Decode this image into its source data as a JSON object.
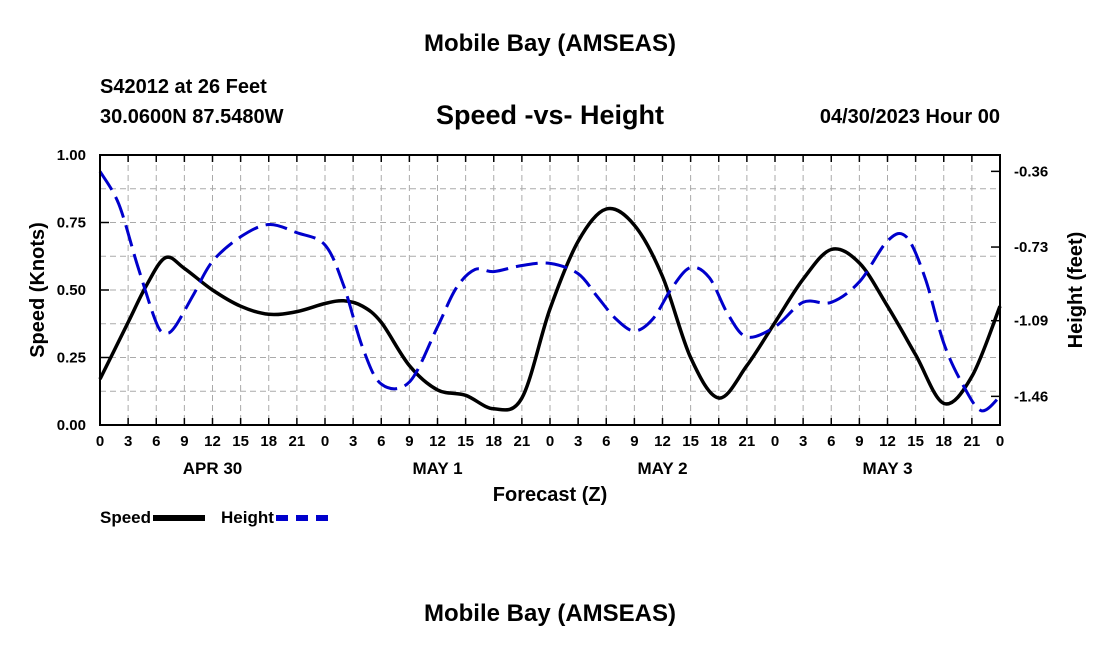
{
  "header": {
    "title_top": "Mobile Bay (AMSEAS)",
    "station": "S42012 at 26 Feet",
    "coords": "30.0600N  87.5480W",
    "subtitle": "Speed -vs- Height",
    "datetime": "04/30/2023 Hour 00"
  },
  "footer": {
    "title_bottom": "Mobile Bay (AMSEAS)"
  },
  "legend": {
    "speed_label": "Speed",
    "height_label": "Height",
    "speed_color": "#000000",
    "height_color": "#0000cc"
  },
  "chart_data": {
    "type": "line",
    "title": "Speed -vs- Height",
    "xlabel": "Forecast (Z)",
    "ylabel_left": "Speed (Knots)",
    "ylabel_right": "Height (feet)",
    "xlim": [
      0,
      96
    ],
    "ylim_left": [
      0,
      1.0
    ],
    "ylim_right": [
      -1.6,
      -0.28
    ],
    "left_ticks": [
      "0.00",
      "0.25",
      "0.50",
      "0.75",
      "1.00"
    ],
    "left_tick_values": [
      0,
      0.25,
      0.5,
      0.75,
      1.0
    ],
    "right_ticks": [
      "-0.36",
      "-0.73",
      "-1.09",
      "-1.46"
    ],
    "right_tick_values": [
      -0.36,
      -0.73,
      -1.09,
      -1.46
    ],
    "x_tick_labels": [
      "0",
      "3",
      "6",
      "9",
      "12",
      "15",
      "18",
      "21",
      "0",
      "3",
      "6",
      "9",
      "12",
      "15",
      "18",
      "21",
      "0",
      "3",
      "6",
      "9",
      "12",
      "15",
      "18",
      "21",
      "0",
      "3",
      "6",
      "9",
      "12",
      "15",
      "18",
      "21",
      "0"
    ],
    "date_labels": [
      {
        "label": "APR 30",
        "x": 12
      },
      {
        "label": "MAY 1",
        "x": 36
      },
      {
        "label": "MAY 2",
        "x": 60
      },
      {
        "label": "MAY 3",
        "x": 84
      }
    ],
    "grid": true,
    "series": [
      {
        "name": "Speed",
        "axis": "left",
        "color": "#000000",
        "dash": "solid",
        "x": [
          0,
          3,
          5,
          7,
          9,
          12,
          15,
          18,
          21,
          24,
          26,
          28,
          30,
          33,
          36,
          39,
          42,
          45,
          48,
          51,
          54,
          57,
          60,
          63,
          66,
          69,
          72,
          75,
          78,
          81,
          84,
          87,
          90,
          93,
          96
        ],
        "y": [
          0.17,
          0.38,
          0.52,
          0.62,
          0.58,
          0.5,
          0.44,
          0.41,
          0.42,
          0.45,
          0.46,
          0.44,
          0.38,
          0.22,
          0.13,
          0.11,
          0.06,
          0.1,
          0.43,
          0.68,
          0.8,
          0.74,
          0.55,
          0.25,
          0.1,
          0.22,
          0.38,
          0.54,
          0.65,
          0.6,
          0.44,
          0.26,
          0.08,
          0.18,
          0.44
        ]
      },
      {
        "name": "Height",
        "axis": "right",
        "color": "#0000cc",
        "dash": "dashed",
        "x": [
          0,
          2,
          4,
          6,
          7,
          8,
          10,
          12,
          15,
          18,
          21,
          24,
          26,
          28,
          30,
          33,
          36,
          38,
          40,
          42,
          45,
          48,
          51,
          53,
          55,
          57,
          59,
          61,
          63,
          65,
          67,
          69,
          72,
          75,
          78,
          81,
          84,
          86,
          88,
          90,
          92,
          94,
          96
        ],
        "y": [
          -0.36,
          -0.52,
          -0.82,
          -1.1,
          -1.15,
          -1.12,
          -0.96,
          -0.8,
          -0.68,
          -0.62,
          -0.66,
          -0.72,
          -0.92,
          -1.22,
          -1.4,
          -1.39,
          -1.12,
          -0.93,
          -0.84,
          -0.85,
          -0.82,
          -0.81,
          -0.86,
          -0.97,
          -1.08,
          -1.14,
          -1.08,
          -0.93,
          -0.83,
          -0.88,
          -1.06,
          -1.17,
          -1.12,
          -1.0,
          -1.0,
          -0.9,
          -0.7,
          -0.68,
          -0.88,
          -1.2,
          -1.4,
          -1.53,
          -1.46
        ]
      }
    ]
  }
}
